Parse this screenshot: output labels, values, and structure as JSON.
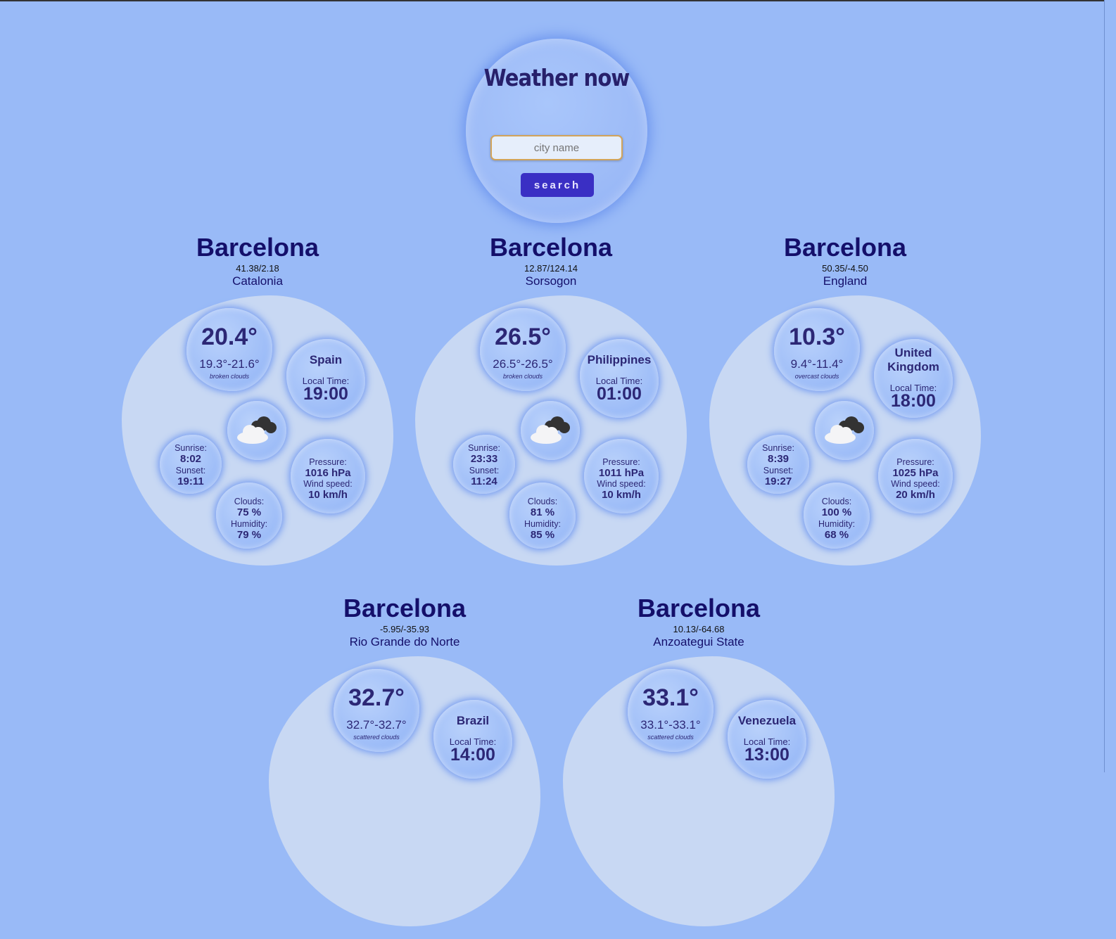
{
  "app": {
    "title": "Weather now",
    "search_placeholder": "city name",
    "search_button": "search"
  },
  "cities": [
    {
      "name": "Barcelona",
      "coords": "41.38/2.18",
      "region": "Catalonia",
      "temp": "20.4°",
      "range": "19.3°-21.6°",
      "desc": "broken clouds",
      "country": "Spain",
      "local_time_label": "Local Time:",
      "local_time": "19:00",
      "icon": "broken-clouds-icon",
      "sunrise_label": "Sunrise:",
      "sunrise": "8:02",
      "sunset_label": "Sunset:",
      "sunset": "19:11",
      "pressure_label": "Pressure:",
      "pressure": "1016 hPa",
      "wind_label": "Wind speed:",
      "wind": "10 km/h",
      "clouds_label": "Clouds:",
      "clouds": "75 %",
      "humidity_label": "Humidity:",
      "humidity": "79 %"
    },
    {
      "name": "Barcelona",
      "coords": "12.87/124.14",
      "region": "Sorsogon",
      "temp": "26.5°",
      "range": "26.5°-26.5°",
      "desc": "broken clouds",
      "country": "Philippines",
      "local_time_label": "Local Time:",
      "local_time": "01:00",
      "icon": "broken-clouds-icon",
      "sunrise_label": "Sunrise:",
      "sunrise": "23:33",
      "sunset_label": "Sunset:",
      "sunset": "11:24",
      "pressure_label": "Pressure:",
      "pressure": "1011 hPa",
      "wind_label": "Wind speed:",
      "wind": "10 km/h",
      "clouds_label": "Clouds:",
      "clouds": "81 %",
      "humidity_label": "Humidity:",
      "humidity": "85 %"
    },
    {
      "name": "Barcelona",
      "coords": "50.35/-4.50",
      "region": "England",
      "temp": "10.3°",
      "range": "9.4°-11.4°",
      "desc": "overcast clouds",
      "country": "United Kingdom",
      "local_time_label": "Local Time:",
      "local_time": "18:00",
      "icon": "overcast-clouds-icon",
      "sunrise_label": "Sunrise:",
      "sunrise": "8:39",
      "sunset_label": "Sunset:",
      "sunset": "19:27",
      "pressure_label": "Pressure:",
      "pressure": "1025 hPa",
      "wind_label": "Wind speed:",
      "wind": "20 km/h",
      "clouds_label": "Clouds:",
      "clouds": "100 %",
      "humidity_label": "Humidity:",
      "humidity": "68 %"
    },
    {
      "name": "Barcelona",
      "coords": "-5.95/-35.93",
      "region": "Rio Grande do Norte",
      "temp": "32.7°",
      "range": "32.7°-32.7°",
      "desc": "scattered clouds",
      "country": "Brazil",
      "local_time_label": "Local Time:",
      "local_time": "14:00"
    },
    {
      "name": "Barcelona",
      "coords": "10.13/-64.68",
      "region": "Anzoategui State",
      "temp": "33.1°",
      "range": "33.1°-33.1°",
      "desc": "scattered clouds",
      "country": "Venezuela",
      "local_time_label": "Local Time:",
      "local_time": "13:00"
    }
  ],
  "colors": {
    "background": "#99baf7",
    "panel": "#c8d8f3",
    "accent": "#3a2fc4",
    "text": "#140f6a"
  }
}
